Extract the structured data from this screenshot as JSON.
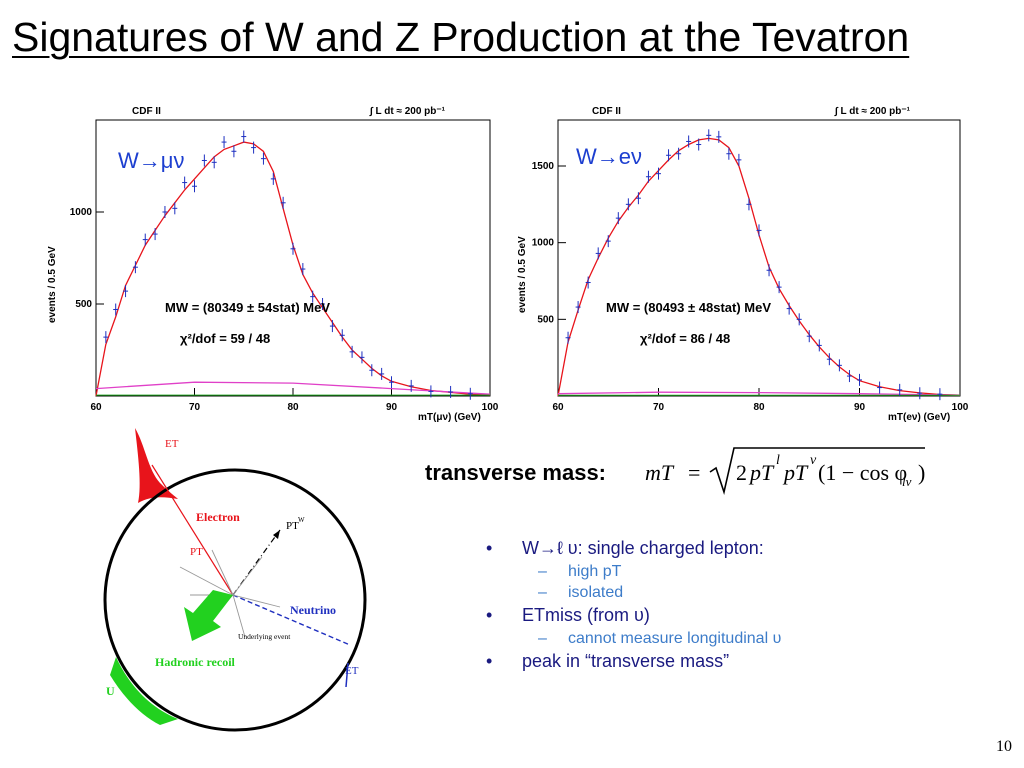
{
  "title": "Signatures of W and Z Production at the Tevatron",
  "slide_number": "10",
  "chart_data": [
    {
      "type": "line",
      "header_left": "CDF II",
      "header_right": "∫ L dt ≈ 200 pb⁻¹",
      "process_label": "W→μν",
      "ylabel": "events / 0.5 GeV",
      "xlabel": "mT(μν) (GeV)",
      "xlim": [
        60,
        100
      ],
      "ylim": [
        0,
        1500
      ],
      "xticks": [
        "60",
        "70",
        "80",
        "90",
        "100"
      ],
      "yticks": [
        "500",
        "1000"
      ],
      "ytick_values": [
        500,
        1000
      ],
      "mass_label": "MW = (80349 ± 54stat) MeV",
      "chi2_label": "χ²/dof = 59 / 48",
      "series": [
        {
          "x": [
            60,
            61,
            62,
            63,
            64,
            65,
            66,
            67,
            68,
            69,
            70,
            71,
            72,
            73,
            74,
            75,
            76,
            77,
            78,
            79,
            80,
            81,
            82,
            83,
            84,
            85,
            86,
            87,
            88,
            89,
            90,
            92,
            94,
            96,
            98,
            100
          ],
          "values": [
            0,
            280,
            430,
            600,
            710,
            820,
            900,
            980,
            1050,
            1120,
            1180,
            1240,
            1300,
            1340,
            1360,
            1380,
            1370,
            1330,
            1220,
            1020,
            820,
            660,
            560,
            480,
            400,
            320,
            250,
            200,
            150,
            110,
            80,
            50,
            30,
            20,
            10,
            5
          ]
        },
        {
          "x": [
            60,
            70,
            80,
            90,
            100
          ],
          "values": [
            40,
            75,
            70,
            40,
            10
          ]
        }
      ],
      "points": [
        {
          "x": 61,
          "y": 320
        },
        {
          "x": 62,
          "y": 470
        },
        {
          "x": 63,
          "y": 570
        },
        {
          "x": 64,
          "y": 700
        },
        {
          "x": 65,
          "y": 850
        },
        {
          "x": 66,
          "y": 880
        },
        {
          "x": 67,
          "y": 1000
        },
        {
          "x": 68,
          "y": 1020
        },
        {
          "x": 69,
          "y": 1160
        },
        {
          "x": 70,
          "y": 1140
        },
        {
          "x": 71,
          "y": 1280
        },
        {
          "x": 72,
          "y": 1270
        },
        {
          "x": 73,
          "y": 1380
        },
        {
          "x": 74,
          "y": 1330
        },
        {
          "x": 75,
          "y": 1410
        },
        {
          "x": 76,
          "y": 1350
        },
        {
          "x": 77,
          "y": 1290
        },
        {
          "x": 78,
          "y": 1180
        },
        {
          "x": 79,
          "y": 1050
        },
        {
          "x": 80,
          "y": 800
        },
        {
          "x": 81,
          "y": 690
        },
        {
          "x": 82,
          "y": 540
        },
        {
          "x": 83,
          "y": 500
        },
        {
          "x": 84,
          "y": 380
        },
        {
          "x": 85,
          "y": 330
        },
        {
          "x": 86,
          "y": 240
        },
        {
          "x": 87,
          "y": 210
        },
        {
          "x": 88,
          "y": 140
        },
        {
          "x": 89,
          "y": 120
        },
        {
          "x": 90,
          "y": 75
        },
        {
          "x": 92,
          "y": 55
        },
        {
          "x": 94,
          "y": 25
        },
        {
          "x": 96,
          "y": 22
        },
        {
          "x": 98,
          "y": 12
        }
      ]
    },
    {
      "type": "line",
      "header_left": "CDF II",
      "header_right": "∫ L dt ≈ 200 pb⁻¹",
      "process_label": "W→eν",
      "ylabel": "events / 0.5 GeV",
      "xlabel": "mT(eν) (GeV)",
      "xlim": [
        60,
        100
      ],
      "ylim": [
        0,
        1800
      ],
      "xticks": [
        "60",
        "70",
        "80",
        "90",
        "100"
      ],
      "yticks": [
        "500",
        "1000",
        "1500"
      ],
      "ytick_values": [
        500,
        1000,
        1500
      ],
      "mass_label": "MW = (80493 ± 48stat) MeV",
      "chi2_label": "χ²/dof = 86 / 48",
      "series": [
        {
          "x": [
            60,
            61,
            62,
            63,
            64,
            65,
            66,
            67,
            68,
            69,
            70,
            71,
            72,
            73,
            74,
            75,
            76,
            77,
            78,
            79,
            80,
            81,
            82,
            83,
            84,
            85,
            86,
            87,
            88,
            89,
            90,
            92,
            94,
            96,
            98,
            100
          ],
          "values": [
            0,
            350,
            560,
            760,
            900,
            1030,
            1140,
            1230,
            1310,
            1400,
            1470,
            1540,
            1600,
            1640,
            1670,
            1680,
            1670,
            1620,
            1500,
            1290,
            1050,
            840,
            700,
            590,
            490,
            400,
            320,
            250,
            190,
            140,
            100,
            60,
            35,
            20,
            10,
            5
          ]
        },
        {
          "x": [
            60,
            70,
            80,
            90,
            100
          ],
          "values": [
            15,
            25,
            22,
            15,
            5
          ]
        }
      ],
      "points": [
        {
          "x": 61,
          "y": 380
        },
        {
          "x": 62,
          "y": 580
        },
        {
          "x": 63,
          "y": 740
        },
        {
          "x": 64,
          "y": 930
        },
        {
          "x": 65,
          "y": 1010
        },
        {
          "x": 66,
          "y": 1160
        },
        {
          "x": 67,
          "y": 1250
        },
        {
          "x": 68,
          "y": 1290
        },
        {
          "x": 69,
          "y": 1430
        },
        {
          "x": 70,
          "y": 1450
        },
        {
          "x": 71,
          "y": 1570
        },
        {
          "x": 72,
          "y": 1580
        },
        {
          "x": 73,
          "y": 1660
        },
        {
          "x": 74,
          "y": 1640
        },
        {
          "x": 75,
          "y": 1700
        },
        {
          "x": 76,
          "y": 1690
        },
        {
          "x": 77,
          "y": 1580
        },
        {
          "x": 78,
          "y": 1540
        },
        {
          "x": 79,
          "y": 1250
        },
        {
          "x": 80,
          "y": 1080
        },
        {
          "x": 81,
          "y": 820
        },
        {
          "x": 82,
          "y": 710
        },
        {
          "x": 83,
          "y": 570
        },
        {
          "x": 84,
          "y": 500
        },
        {
          "x": 85,
          "y": 390
        },
        {
          "x": 86,
          "y": 330
        },
        {
          "x": 87,
          "y": 240
        },
        {
          "x": 88,
          "y": 200
        },
        {
          "x": 89,
          "y": 130
        },
        {
          "x": 90,
          "y": 105
        },
        {
          "x": 92,
          "y": 55
        },
        {
          "x": 94,
          "y": 40
        },
        {
          "x": 96,
          "y": 18
        },
        {
          "x": 98,
          "y": 12
        }
      ]
    }
  ],
  "diagram": {
    "labels": {
      "et_top": "ET",
      "electron": "Electron",
      "pt_w": "PT",
      "pt_w_sup": "W",
      "pt_e": "PT",
      "neutrino": "Neutrino",
      "underlying": "Underlying event",
      "hadronic": "Hadronic recoil",
      "et_miss": "ET",
      "u": "U"
    },
    "colors": {
      "electron": "#e8141b",
      "neutrino": "#1f2fbf",
      "hadronic": "#22d11f"
    }
  },
  "formula": {
    "label": "transverse mass:",
    "lhs": "mT",
    "eq": "=",
    "rad_a": "2",
    "rad_b": "pT",
    "rad_b_sup": "l",
    "rad_c": "pT",
    "rad_c_sup": "ν",
    "rad_d": "(1 − cos φ",
    "rad_d_sub": "lν",
    "rad_e": ")"
  },
  "bullets": [
    {
      "text": "W→ℓ υ: single charged lepton:",
      "sub": [
        "high pT",
        "isolated"
      ]
    },
    {
      "text": "ETmiss (from υ)",
      "sub": [
        "cannot measure longitudinal υ"
      ]
    },
    {
      "text": "peak in “transverse mass”",
      "sub": []
    }
  ]
}
